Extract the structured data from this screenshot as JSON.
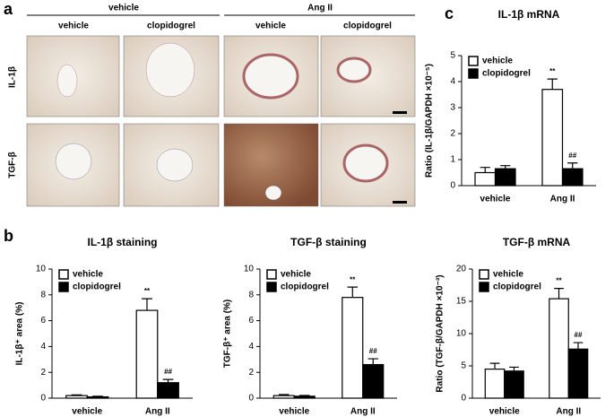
{
  "figure": {
    "panel_labels": [
      "a",
      "b",
      "c"
    ]
  },
  "micrographs": {
    "groups": [
      "vehicle",
      "Ang II"
    ],
    "columns": [
      "vehicle",
      "clopidogrel",
      "vehicle",
      "clopidogrel"
    ],
    "rows": [
      "IL-1β",
      "TGF-β"
    ]
  },
  "chart_data": [
    {
      "type": "bar",
      "title": "IL-1β mRNA",
      "y_label": "Ratio (IL-1β/GAPDH ×10⁻⁵)",
      "categories": [
        "vehicle",
        "Ang II"
      ],
      "ylim": [
        0,
        5
      ],
      "yticks": [
        0,
        1,
        2,
        3,
        4,
        5
      ],
      "series": [
        {
          "name": "vehicle",
          "color": "#ffffff",
          "values": [
            0.5,
            3.7
          ],
          "errors": [
            0.2,
            0.4
          ],
          "significance": [
            null,
            "**"
          ]
        },
        {
          "name": "clopidogrel",
          "color": "#000000",
          "values": [
            0.65,
            0.65
          ],
          "errors": [
            0.12,
            0.22
          ],
          "significance": [
            null,
            "##"
          ]
        }
      ]
    },
    {
      "type": "bar",
      "title": "IL-1β staining",
      "y_label": "IL-1β⁺ area (%)",
      "categories": [
        "vehicle",
        "Ang II"
      ],
      "ylim": [
        0,
        10
      ],
      "yticks": [
        0,
        2,
        4,
        6,
        8,
        10
      ],
      "series": [
        {
          "name": "vehicle",
          "color": "#ffffff",
          "values": [
            0.2,
            6.8
          ],
          "errors": [
            0.05,
            0.9
          ],
          "significance": [
            null,
            "**"
          ]
        },
        {
          "name": "clopidogrel",
          "color": "#000000",
          "values": [
            0.1,
            1.2
          ],
          "errors": [
            0.05,
            0.25
          ],
          "significance": [
            null,
            "##"
          ]
        }
      ]
    },
    {
      "type": "bar",
      "title": "TGF-β staining",
      "y_label": "TGF-β⁺ area (%)",
      "categories": [
        "vehicle",
        "Ang II"
      ],
      "ylim": [
        0,
        10
      ],
      "yticks": [
        0,
        2,
        4,
        6,
        8,
        10
      ],
      "series": [
        {
          "name": "vehicle",
          "color": "#ffffff",
          "values": [
            0.2,
            7.8
          ],
          "errors": [
            0.08,
            0.8
          ],
          "significance": [
            null,
            "**"
          ]
        },
        {
          "name": "clopidogrel",
          "color": "#000000",
          "values": [
            0.15,
            2.6
          ],
          "errors": [
            0.06,
            0.45
          ],
          "significance": [
            null,
            "##"
          ]
        }
      ]
    },
    {
      "type": "bar",
      "title": "TGF-β mRNA",
      "y_label": "Ratio (TGF-β/GAPDH ×10⁻³)",
      "categories": [
        "vehicle",
        "Ang II"
      ],
      "ylim": [
        0,
        20
      ],
      "yticks": [
        0,
        5,
        10,
        15,
        20
      ],
      "series": [
        {
          "name": "vehicle",
          "color": "#ffffff",
          "values": [
            4.5,
            15.4
          ],
          "errors": [
            0.9,
            1.6
          ],
          "significance": [
            null,
            "**"
          ]
        },
        {
          "name": "clopidogrel",
          "color": "#000000",
          "values": [
            4.2,
            7.6
          ],
          "errors": [
            0.6,
            1.0
          ],
          "significance": [
            null,
            "##"
          ]
        }
      ]
    }
  ]
}
